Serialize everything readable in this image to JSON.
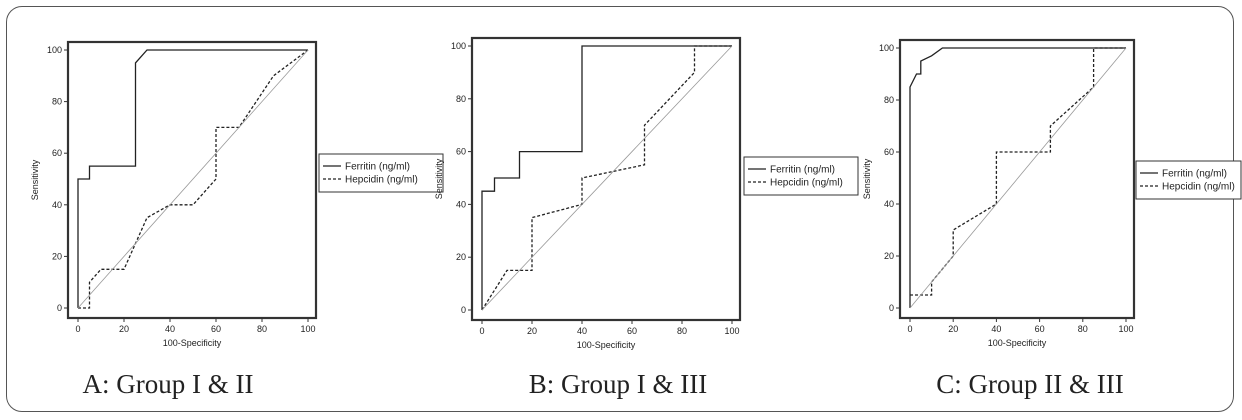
{
  "chart_data": [
    {
      "type": "line",
      "title": "A: Group I & II",
      "xlabel": "100-Specificity",
      "ylabel": "Sensitivity",
      "xlim": [
        0,
        100
      ],
      "ylim": [
        0,
        100
      ],
      "xticks": [
        0,
        20,
        40,
        60,
        80,
        100
      ],
      "yticks": [
        0,
        20,
        40,
        60,
        80,
        100
      ],
      "legend_position": "right",
      "series": [
        {
          "name": "Ferritin (ng/ml)",
          "style": "solid",
          "x": [
            0,
            0,
            5,
            5,
            25,
            25,
            30,
            100
          ],
          "y": [
            0,
            50,
            50,
            55,
            55,
            95,
            100,
            100
          ]
        },
        {
          "name": "Hepcidin (ng/ml)",
          "style": "dashed",
          "x": [
            0,
            5,
            5,
            10,
            15,
            20,
            30,
            40,
            50,
            60,
            60,
            70,
            85,
            100
          ],
          "y": [
            0,
            0,
            10,
            15,
            15,
            15,
            35,
            40,
            40,
            50,
            70,
            70,
            90,
            100
          ]
        },
        {
          "name": "",
          "style": "reference",
          "x": [
            0,
            100
          ],
          "y": [
            0,
            100
          ]
        }
      ]
    },
    {
      "type": "line",
      "title": "B: Group I & III",
      "xlabel": "100-Specificity",
      "ylabel": "Sensitivity",
      "xlim": [
        0,
        100
      ],
      "ylim": [
        0,
        100
      ],
      "xticks": [
        0,
        20,
        40,
        60,
        80,
        100
      ],
      "yticks": [
        0,
        20,
        40,
        60,
        80,
        100
      ],
      "legend_position": "right",
      "series": [
        {
          "name": "Ferritin (ng/ml)",
          "style": "solid",
          "x": [
            0,
            0,
            5,
            5,
            15,
            15,
            40,
            40,
            100
          ],
          "y": [
            0,
            45,
            45,
            50,
            50,
            60,
            60,
            100,
            100
          ]
        },
        {
          "name": "Hepcidin (ng/ml)",
          "style": "dashed",
          "x": [
            0,
            10,
            10,
            20,
            20,
            40,
            40,
            65,
            65,
            85,
            85,
            100
          ],
          "y": [
            0,
            15,
            15,
            15,
            35,
            40,
            50,
            55,
            70,
            90,
            100,
            100
          ]
        },
        {
          "name": "",
          "style": "reference",
          "x": [
            0,
            100
          ],
          "y": [
            0,
            100
          ]
        }
      ]
    },
    {
      "type": "line",
      "title": "C: Group II & III",
      "xlabel": "100-Specificity",
      "ylabel": "Sensitivity",
      "xlim": [
        0,
        100
      ],
      "ylim": [
        0,
        100
      ],
      "xticks": [
        0,
        20,
        40,
        60,
        80,
        100
      ],
      "yticks": [
        0,
        20,
        40,
        60,
        80,
        100
      ],
      "legend_position": "right",
      "series": [
        {
          "name": "Ferritin (ng/ml)",
          "style": "solid",
          "x": [
            0,
            0,
            3,
            5,
            5,
            10,
            15,
            20,
            100
          ],
          "y": [
            0,
            85,
            90,
            90,
            95,
            97,
            100,
            100,
            100
          ]
        },
        {
          "name": "Hepcidin (ng/ml)",
          "style": "dashed",
          "x": [
            0,
            10,
            10,
            20,
            20,
            40,
            40,
            65,
            65,
            85,
            85,
            100
          ],
          "y": [
            5,
            5,
            10,
            20,
            30,
            40,
            60,
            60,
            70,
            85,
            100,
            100
          ]
        },
        {
          "name": "",
          "style": "reference",
          "x": [
            0,
            100
          ],
          "y": [
            0,
            100
          ]
        }
      ]
    }
  ]
}
